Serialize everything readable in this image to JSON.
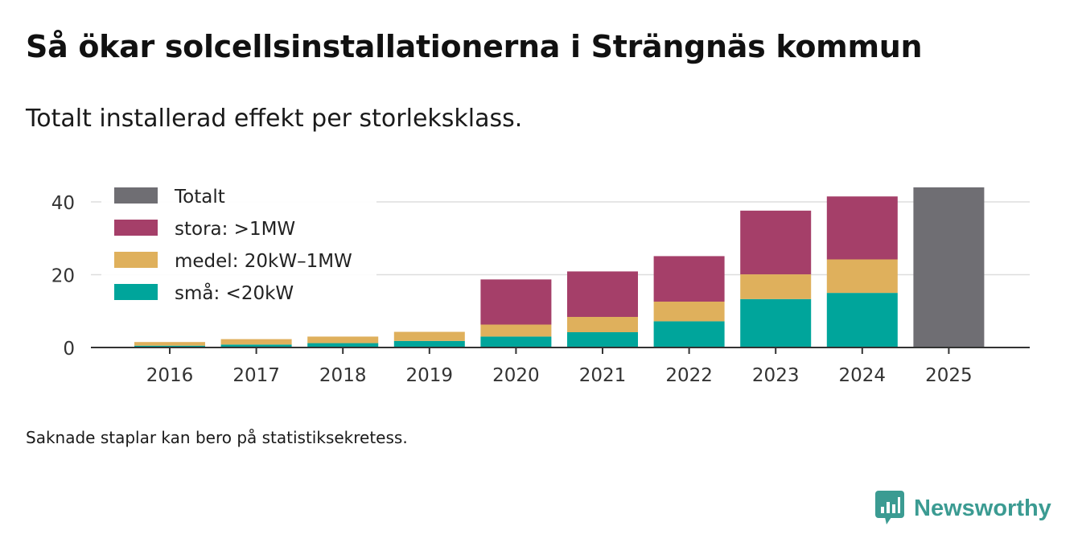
{
  "title": "Så ökar solcellsinstallationerna i Strängnäs kommun",
  "subtitle": "Totalt installerad effekt per storleksklass.",
  "footnote": "Saknade staplar kan bero på statistiksekretess.",
  "brand": {
    "name": "Newsworthy",
    "icon": "newsworthy-logo-icon",
    "color": "#3b9b92"
  },
  "chart_data": {
    "type": "bar",
    "stacked": true,
    "title": "Så ökar solcellsinstallationerna i Strängnäs kommun",
    "subtitle": "Totalt installerad effekt per storleksklass.",
    "xlabel": "",
    "ylabel": "",
    "ylim": [
      0,
      45
    ],
    "yticks": [
      0,
      20,
      40
    ],
    "grid": true,
    "legend_position": "top-left",
    "categories": [
      "2016",
      "2017",
      "2018",
      "2019",
      "2020",
      "2021",
      "2022",
      "2023",
      "2024",
      "2025"
    ],
    "series": [
      {
        "name": "små: <20kW",
        "color": "#00a59b",
        "values": [
          0.5,
          0.8,
          1.2,
          1.8,
          3.0,
          4.2,
          7.2,
          13.3,
          15.0,
          0
        ]
      },
      {
        "name": "medel: 20kW–1MW",
        "color": "#dfb05c",
        "values": [
          1.0,
          1.5,
          1.8,
          2.5,
          3.3,
          4.2,
          5.4,
          6.8,
          9.2,
          0
        ]
      },
      {
        "name": "stora: >1MW",
        "color": "#a53f69",
        "values": [
          0,
          0,
          0,
          0,
          12.4,
          12.5,
          12.5,
          17.5,
          17.3,
          0
        ]
      },
      {
        "name": "Totalt",
        "color": "#6f6e73",
        "values": [
          0,
          0,
          0,
          0,
          0,
          0,
          0,
          0,
          0,
          44.0
        ]
      }
    ],
    "legend": [
      "Totalt",
      "stora: >1MW",
      "medel: 20kW–1MW",
      "små: <20kW"
    ]
  }
}
